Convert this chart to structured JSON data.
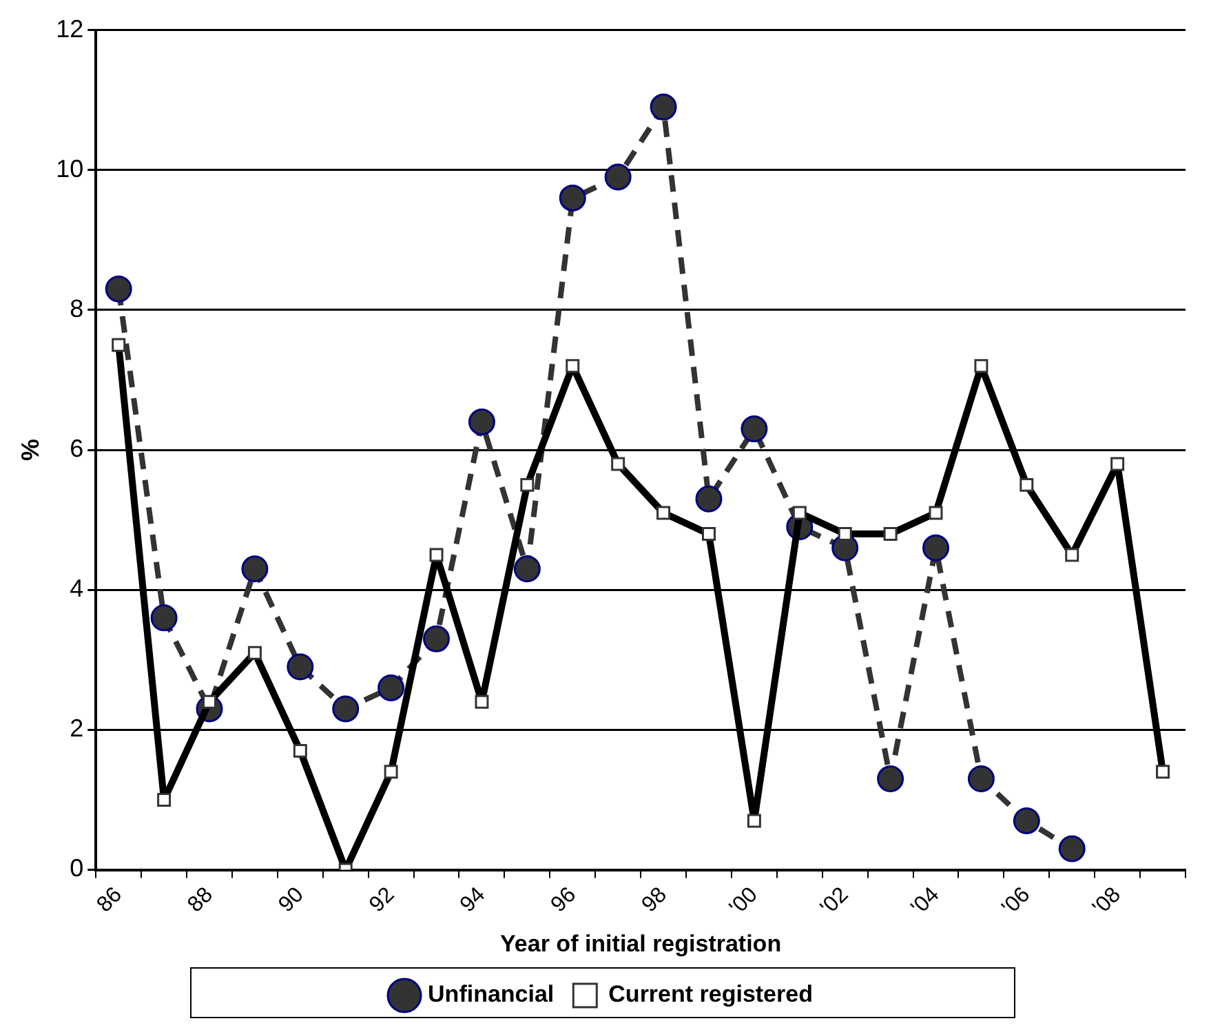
{
  "chart_data": {
    "type": "line",
    "xlabel": "Year of initial registration",
    "ylabel": "%",
    "categories": [
      "86",
      null,
      "88",
      null,
      "90",
      null,
      "92",
      null,
      "94",
      null,
      "96",
      null,
      "98",
      null,
      "'00",
      null,
      "'02",
      null,
      "'04",
      null,
      "'06",
      null,
      "'08",
      null
    ],
    "series": [
      {
        "name": "Unfinancial",
        "color": "#333333",
        "marker": "circle",
        "line_style": "dashed",
        "values": [
          8.3,
          3.6,
          2.3,
          4.3,
          2.9,
          2.3,
          2.6,
          3.3,
          6.4,
          4.3,
          9.6,
          9.9,
          10.9,
          5.3,
          6.3,
          4.9,
          4.6,
          1.3,
          4.6,
          1.3,
          0.7,
          0.3,
          null,
          null
        ]
      },
      {
        "name": "Current registered",
        "color": "#000000",
        "marker": "square",
        "line_style": "solid",
        "values": [
          7.5,
          1.0,
          2.4,
          3.1,
          1.7,
          0.0,
          1.4,
          4.5,
          2.4,
          5.5,
          7.2,
          5.8,
          5.1,
          4.8,
          0.7,
          5.1,
          4.8,
          4.8,
          5.1,
          7.2,
          5.5,
          4.5,
          5.8,
          1.4
        ]
      }
    ],
    "ylim": [
      0,
      12
    ],
    "yticks": [
      0,
      2,
      4,
      6,
      8,
      10,
      12
    ],
    "grid": "y",
    "legend": "bottom"
  }
}
